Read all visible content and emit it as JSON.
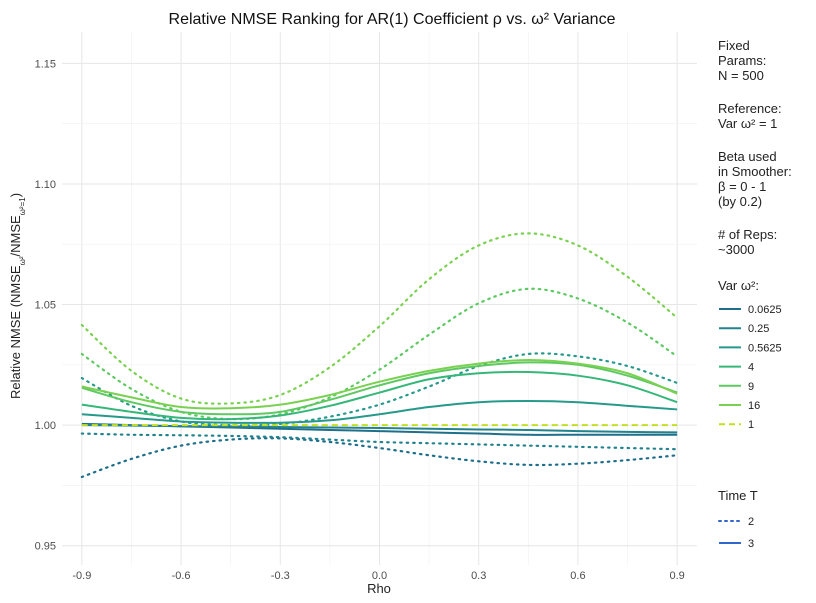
{
  "chart_data": {
    "type": "line",
    "title": "Relative NMSE Ranking for AR(1) Coefficient ρ vs. ω² Variance",
    "xlabel": "Rho",
    "ylabel_main": "Relative NMSE (NMSE",
    "ylabel_sub1": "ω²",
    "ylabel_mid": "/NMSE",
    "ylabel_sub2": "ω²=1",
    "ylabel_end": ")",
    "xlim": [
      -0.96,
      0.96
    ],
    "ylim": [
      0.942,
      1.163
    ],
    "x_ticks": [
      -0.9,
      -0.6,
      -0.3,
      0.0,
      0.3,
      0.6,
      0.9
    ],
    "x_tick_labels": [
      "-0.9",
      "-0.6",
      "-0.3",
      "0.0",
      "0.3",
      "0.6",
      "0.9"
    ],
    "y_ticks": [
      0.95,
      1.0,
      1.05,
      1.1,
      1.15
    ],
    "y_tick_labels": [
      "0.95",
      "1.00",
      "1.05",
      "1.10",
      "1.15"
    ],
    "grid": true,
    "side_notes": [
      [
        "Fixed",
        "Params:",
        "N = 500"
      ],
      [
        "Reference:",
        "Var ω² = 1"
      ],
      [
        "Beta used",
        "in Smoother:",
        "β = 0 - 1",
        "(by 0.2)"
      ],
      [
        "# of Reps:",
        "~3000"
      ]
    ],
    "legend_var": {
      "title": "Var ω²:",
      "entries": [
        {
          "label": "0.0625",
          "color": "#1f6f8b"
        },
        {
          "label": "0.25",
          "color": "#22838e"
        },
        {
          "label": "0.5625",
          "color": "#26998a"
        },
        {
          "label": "4",
          "color": "#35b779"
        },
        {
          "label": "9",
          "color": "#5ec962"
        },
        {
          "label": "16",
          "color": "#7ad151"
        },
        {
          "label": "1",
          "color": "#c2df23"
        }
      ]
    },
    "legend_time": {
      "title": "Time T",
      "entries": [
        {
          "label": "2",
          "color": "#3366cc",
          "dash": "2,4"
        },
        {
          "label": "3",
          "color": "#3366cc",
          "dash": ""
        }
      ]
    },
    "x": [
      -0.9,
      -0.75,
      -0.6,
      -0.45,
      -0.3,
      -0.15,
      0.0,
      0.15,
      0.3,
      0.45,
      0.6,
      0.75,
      0.9
    ],
    "series": [
      {
        "name": "0.0625",
        "time": "2",
        "color": "#1f6f8b",
        "values": [
          0.9785,
          0.986,
          0.9915,
          0.994,
          0.9945,
          0.993,
          0.9905,
          0.9875,
          0.985,
          0.9835,
          0.984,
          0.9855,
          0.9875
        ]
      },
      {
        "name": "0.25",
        "time": "2",
        "color": "#22838e",
        "values": [
          0.9965,
          0.996,
          0.9958,
          0.9955,
          0.995,
          0.994,
          0.993,
          0.9925,
          0.992,
          0.9915,
          0.991,
          0.9905,
          0.99
        ]
      },
      {
        "name": "0.5625",
        "time": "2",
        "color": "#26998a",
        "values": [
          1.0195,
          1.008,
          1.0015,
          1.0,
          1.0005,
          1.0035,
          1.0085,
          1.016,
          1.0245,
          1.0295,
          1.0285,
          1.0245,
          1.0175
        ]
      },
      {
        "name": "4",
        "time": "2",
        "color": "#5ec962",
        "values": [
          1.0295,
          1.015,
          1.0055,
          1.0025,
          1.0045,
          1.0115,
          1.023,
          1.0375,
          1.0505,
          1.0565,
          1.0525,
          1.0425,
          1.0285
        ]
      },
      {
        "name": "16",
        "time": "2",
        "color": "#7ad151",
        "values": [
          1.0415,
          1.0225,
          1.011,
          1.009,
          1.0125,
          1.024,
          1.041,
          1.0605,
          1.0745,
          1.0795,
          1.0745,
          1.0615,
          1.0445
        ]
      },
      {
        "name": "0.0625",
        "time": "3",
        "color": "#1f6f8b",
        "values": [
          1.0005,
          1.0,
          0.9995,
          0.999,
          0.9985,
          0.998,
          0.9975,
          0.997,
          0.9965,
          0.996,
          0.996,
          0.996,
          0.996
        ]
      },
      {
        "name": "0.25",
        "time": "3",
        "color": "#22838e",
        "values": [
          1.0,
          0.9998,
          0.9996,
          0.9994,
          0.9992,
          0.999,
          0.9988,
          0.9985,
          0.9982,
          0.998,
          0.9975,
          0.9972,
          0.997
        ]
      },
      {
        "name": "0.5625",
        "time": "3",
        "color": "#26998a",
        "values": [
          1.0045,
          1.003,
          1.0015,
          1.001,
          1.001,
          1.002,
          1.0045,
          1.0075,
          1.0095,
          1.01,
          1.0095,
          1.008,
          1.0065
        ]
      },
      {
        "name": "4",
        "time": "3",
        "color": "#35b779",
        "values": [
          1.0085,
          1.0055,
          1.003,
          1.0025,
          1.004,
          1.008,
          1.0135,
          1.019,
          1.0215,
          1.022,
          1.0205,
          1.0165,
          1.0095
        ]
      },
      {
        "name": "9",
        "time": "3",
        "color": "#5ec962",
        "values": [
          1.0155,
          1.0095,
          1.0055,
          1.0045,
          1.0055,
          1.0105,
          1.0165,
          1.0215,
          1.0245,
          1.026,
          1.025,
          1.0205,
          1.0135
        ]
      },
      {
        "name": "16",
        "time": "3",
        "color": "#7ad151",
        "values": [
          1.016,
          1.0115,
          1.0075,
          1.007,
          1.0085,
          1.0125,
          1.018,
          1.0225,
          1.0255,
          1.027,
          1.0255,
          1.0215,
          1.013
        ]
      },
      {
        "name": "1",
        "time": "3",
        "color": "#c2df23",
        "dash": "6,4",
        "values": [
          1.0,
          1.0,
          1.0,
          1.0,
          1.0,
          1.0,
          1.0,
          1.0,
          1.0,
          1.0,
          1.0,
          1.0,
          1.0
        ]
      }
    ]
  }
}
